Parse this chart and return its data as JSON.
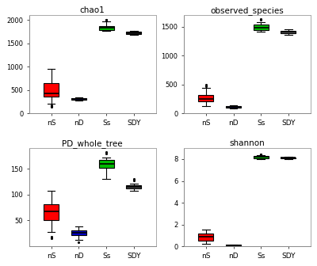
{
  "titles": [
    "chao1",
    "observed_species",
    "PD_whole_tree",
    "shannon"
  ],
  "categories": [
    "nS",
    "nD",
    "Ss",
    "SDY"
  ],
  "chao1": {
    "nS": {
      "q1": 350,
      "median": 430,
      "q3": 650,
      "whislo": 200,
      "whishi": 950,
      "fliers": [
        170,
        150,
        130
      ]
    },
    "nD": {
      "q1": 285,
      "median": 305,
      "q3": 325,
      "whislo": 265,
      "whishi": 345,
      "fliers": []
    },
    "Ss": {
      "q1": 1785,
      "median": 1825,
      "q3": 1870,
      "whislo": 1765,
      "whishi": 1960,
      "fliers": [
        2000,
        2010
      ]
    },
    "SDY": {
      "q1": 1700,
      "median": 1720,
      "q3": 1740,
      "whislo": 1680,
      "whishi": 1760,
      "fliers": []
    }
  },
  "observed_species": {
    "nS": {
      "q1": 200,
      "median": 250,
      "q3": 320,
      "whislo": 130,
      "whishi": 440,
      "fliers": [
        470,
        490
      ]
    },
    "nD": {
      "q1": 95,
      "median": 110,
      "q3": 125,
      "whislo": 82,
      "whishi": 140,
      "fliers": []
    },
    "Ss": {
      "q1": 1440,
      "median": 1490,
      "q3": 1540,
      "whislo": 1415,
      "whishi": 1575,
      "fliers": [
        1625,
        1635
      ]
    },
    "SDY": {
      "q1": 1385,
      "median": 1410,
      "q3": 1435,
      "whislo": 1365,
      "whishi": 1455,
      "fliers": []
    }
  },
  "PD_whole_tree": {
    "nS": {
      "q1": 50,
      "median": 68,
      "q3": 82,
      "whislo": 28,
      "whishi": 108,
      "fliers": [
        18,
        15
      ]
    },
    "nD": {
      "q1": 22,
      "median": 26,
      "q3": 30,
      "whislo": 12,
      "whishi": 38,
      "fliers": [
        8
      ]
    },
    "Ss": {
      "q1": 152,
      "median": 160,
      "q3": 168,
      "whislo": 130,
      "whishi": 172,
      "fliers": [
        180,
        183
      ]
    },
    "SDY": {
      "q1": 112,
      "median": 115,
      "q3": 118,
      "whislo": 108,
      "whishi": 122,
      "fliers": [
        128,
        130
      ]
    }
  },
  "shannon": {
    "nS": {
      "q1": 0.5,
      "median": 0.85,
      "q3": 1.2,
      "whislo": 0.2,
      "whishi": 1.5,
      "fliers": []
    },
    "nD": {
      "q1": 0.04,
      "median": 0.08,
      "q3": 0.14,
      "whislo": 0.01,
      "whishi": 0.18,
      "fliers": []
    },
    "Ss": {
      "q1": 8.1,
      "median": 8.2,
      "q3": 8.3,
      "whislo": 8.0,
      "whishi": 8.36,
      "fliers": [
        8.45,
        8.47
      ]
    },
    "SDY": {
      "q1": 8.05,
      "median": 8.12,
      "q3": 8.18,
      "whislo": 7.98,
      "whishi": 8.22,
      "fliers": []
    }
  },
  "ylims": {
    "chao1": [
      0,
      2100
    ],
    "observed_species": [
      0,
      1700
    ],
    "PD_whole_tree": [
      0,
      190
    ],
    "shannon": [
      0,
      9
    ]
  },
  "yticks": {
    "chao1": [
      0,
      500,
      1000,
      1500,
      2000
    ],
    "observed_species": [
      0,
      500,
      1000,
      1500
    ],
    "PD_whole_tree": [
      50,
      100,
      150
    ],
    "shannon": [
      0,
      2,
      4,
      6,
      8
    ]
  },
  "colors": {
    "nS": "#FF0000",
    "nD": "#0000CC",
    "Ss": "#00BB00",
    "SDY": "#555555"
  },
  "bg_color": "#FFFFFF"
}
